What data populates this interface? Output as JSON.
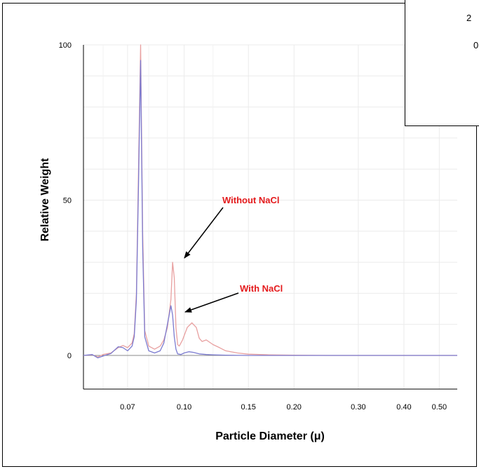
{
  "chart_data": {
    "type": "line",
    "title": "",
    "xlabel": "Particle Diameter (μ)",
    "ylabel": "Relative Weight",
    "x_ticks": [
      {
        "value": 0.07,
        "label": "0.07"
      },
      {
        "value": 0.1,
        "label": "0.10"
      },
      {
        "value": 0.15,
        "label": "0.15"
      },
      {
        "value": 0.2,
        "label": "0.20"
      },
      {
        "value": 0.3,
        "label": "0.30"
      },
      {
        "value": 0.4,
        "label": "0.40"
      },
      {
        "value": 0.5,
        "label": "0.50"
      }
    ],
    "y_ticks": [
      {
        "value": 0,
        "label": "0"
      },
      {
        "value": 50,
        "label": "50"
      },
      {
        "value": 100,
        "label": "100"
      }
    ],
    "xlim": [
      0.053,
      0.56
    ],
    "ylim": [
      -12,
      100
    ],
    "grid": true,
    "series": [
      {
        "name": "Without NaCl",
        "color": "#e8a0a0",
        "x": [
          0.053,
          0.056,
          0.058,
          0.06,
          0.063,
          0.066,
          0.068,
          0.07,
          0.072,
          0.073,
          0.074,
          0.075,
          0.076,
          0.077,
          0.078,
          0.08,
          0.083,
          0.086,
          0.088,
          0.09,
          0.092,
          0.093,
          0.094,
          0.095,
          0.096,
          0.097,
          0.099,
          0.102,
          0.105,
          0.108,
          0.11,
          0.112,
          0.115,
          0.12,
          0.125,
          0.13,
          0.14,
          0.15,
          0.17,
          0.2,
          0.25,
          0.3,
          0.4,
          0.56
        ],
        "y": [
          0,
          0.2,
          -0.5,
          0.3,
          0.8,
          2.5,
          3.2,
          2.5,
          4,
          7,
          20,
          60,
          100,
          40,
          8,
          3,
          2,
          3,
          5,
          9,
          18,
          30,
          25,
          9,
          3.5,
          3,
          5,
          9,
          10.5,
          9,
          5.5,
          4.5,
          5,
          3.5,
          2.5,
          1.5,
          0.8,
          0.4,
          0.2,
          0.1,
          0,
          0,
          0,
          0
        ]
      },
      {
        "name": "With NaCl",
        "color": "#7b7bd0",
        "x": [
          0.053,
          0.056,
          0.058,
          0.06,
          0.063,
          0.066,
          0.068,
          0.07,
          0.072,
          0.073,
          0.074,
          0.075,
          0.076,
          0.077,
          0.078,
          0.08,
          0.083,
          0.086,
          0.088,
          0.09,
          0.092,
          0.093,
          0.094,
          0.095,
          0.096,
          0.098,
          0.1,
          0.103,
          0.106,
          0.11,
          0.115,
          0.12,
          0.13,
          0.15,
          0.2,
          0.3,
          0.56
        ],
        "y": [
          0,
          0.3,
          -0.8,
          -0.2,
          0.6,
          2.8,
          2.5,
          1.5,
          3,
          6,
          18,
          55,
          95,
          35,
          6,
          1.5,
          0.8,
          1.5,
          4,
          10,
          16,
          13,
          6,
          2,
          0.5,
          0.3,
          0.8,
          1.2,
          1,
          0.5,
          0.3,
          0.2,
          0.1,
          0,
          0,
          0,
          0
        ]
      }
    ],
    "annotations": [
      {
        "text": "Without NaCl",
        "color": "#e41a1c"
      },
      {
        "text": "With NaCl",
        "color": "#e41a1c"
      }
    ]
  },
  "inset": {
    "tick_labels": [
      "2",
      "0"
    ]
  }
}
